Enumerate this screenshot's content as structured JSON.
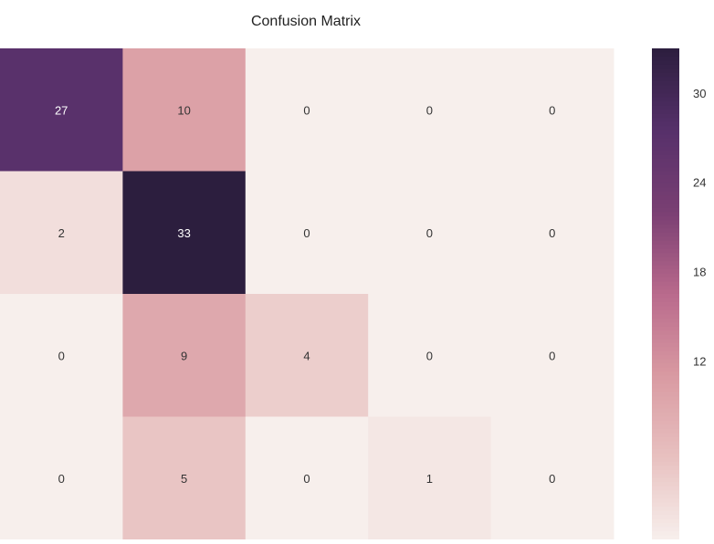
{
  "chart_data": {
    "type": "heatmap",
    "title": "Confusion Matrix",
    "xlabel": "",
    "ylabel": "",
    "matrix": [
      [
        27,
        10,
        0,
        0,
        0
      ],
      [
        2,
        33,
        0,
        0,
        0
      ],
      [
        0,
        9,
        4,
        0,
        0
      ],
      [
        0,
        5,
        0,
        1,
        0
      ]
    ],
    "colorbar": {
      "ticks": [
        30,
        24,
        18,
        12
      ],
      "range": [
        0,
        33
      ]
    },
    "colormap": [
      "#f7efec",
      "#e8c1c0",
      "#d99aa2",
      "#b96a8c",
      "#7a3f73",
      "#56306a",
      "#2c1e3e"
    ],
    "grid": false
  }
}
